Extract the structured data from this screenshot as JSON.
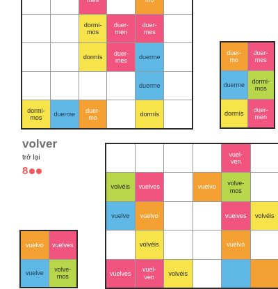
{
  "colors": {
    "red": "#f0547f",
    "orange": "#f5a033",
    "blue": "#60b8e6",
    "green": "#b7d64a",
    "yellow": "#f7e34a"
  },
  "header": {
    "title": "volver",
    "subtitle": "trở lại",
    "level": "8",
    "dots": 2
  },
  "grid1": [
    [
      "",
      "",
      "mes",
      "",
      "mo",
      ""
    ],
    [
      "",
      "",
      "dormi-\nmos",
      "duer-\nmen",
      "duer-\nmes",
      ""
    ],
    [
      "",
      "",
      "dormís",
      "duer-\nmes",
      "duerme",
      ""
    ],
    [
      "",
      "",
      "",
      "",
      "duerme",
      ""
    ],
    [
      "dormi-\nmos",
      "duerme",
      "duer-\nmo",
      "",
      "dormís",
      ""
    ]
  ],
  "grid2": [
    [
      "duer-\nmo",
      "duer-\nmes"
    ],
    [
      "duerme",
      "dormi-\nmos"
    ],
    [
      "dormís",
      "duer-\nmen"
    ]
  ],
  "grid3": [
    [
      "",
      "",
      "",
      "",
      "vuel-\nven",
      ""
    ],
    [
      "volvéis",
      "vuelves",
      "",
      "vuelvo",
      "volve-\nmos",
      ""
    ],
    [
      "vuelve",
      "vuelvo",
      "",
      "",
      "vuelves",
      "volvéis"
    ],
    [
      "",
      "volvéis",
      "",
      "",
      "vuelvo",
      ""
    ],
    [
      "vuelves",
      "vuel-\nven",
      "volvéis",
      "",
      "",
      ""
    ]
  ],
  "grid4": [
    [
      "vuelvo",
      "vuelves"
    ],
    [
      "vuelve",
      "volve-\nmos"
    ]
  ]
}
